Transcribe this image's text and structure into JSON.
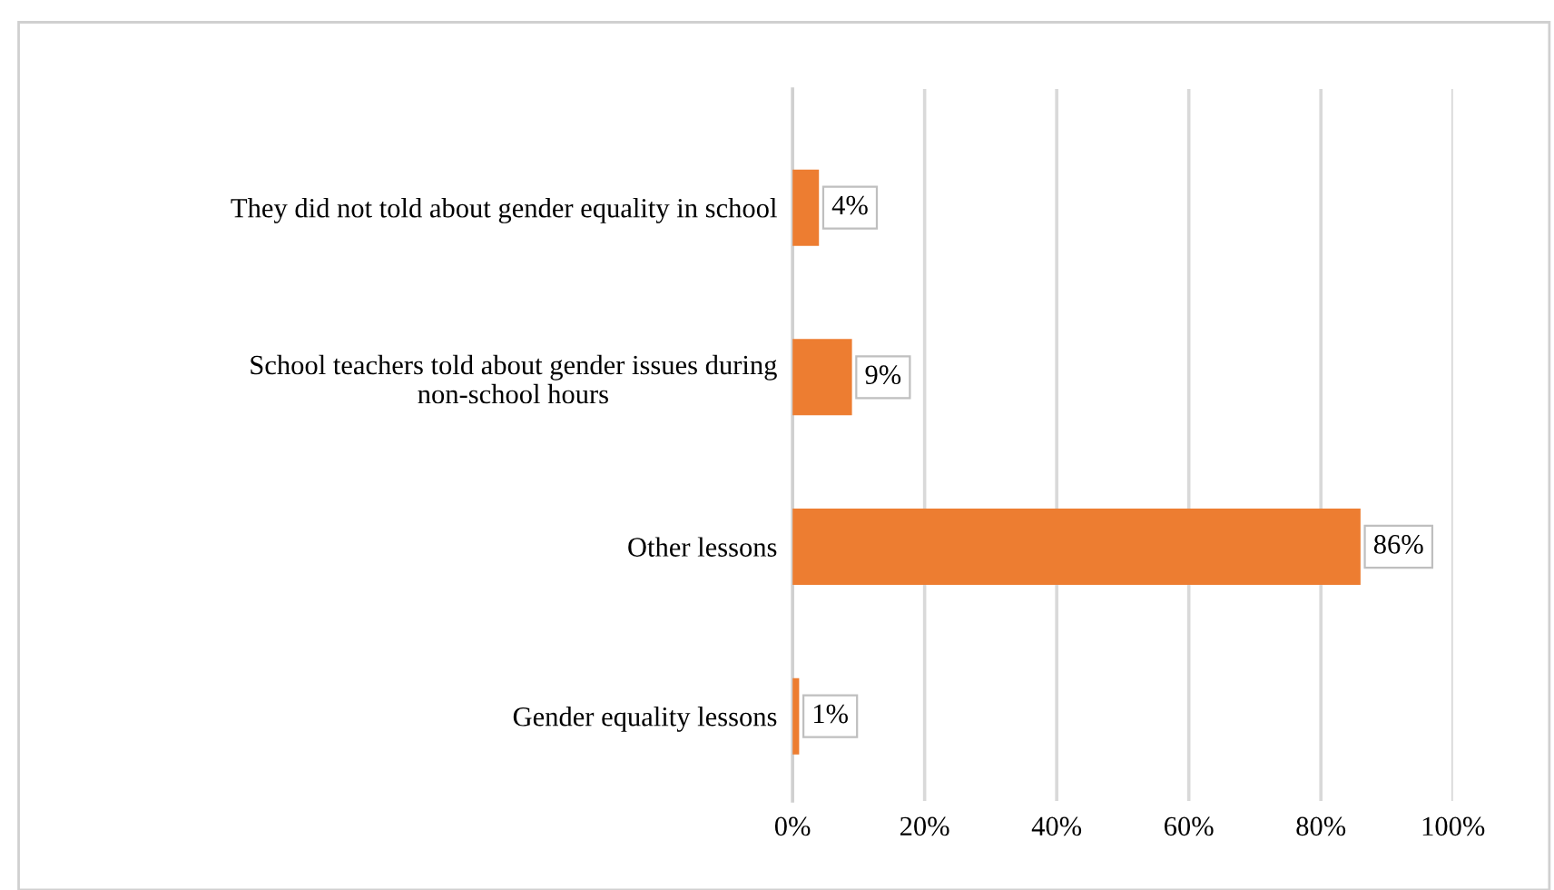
{
  "chart_data": {
    "type": "bar",
    "orientation": "horizontal",
    "categories": [
      "They did not told about gender equality in school",
      "School teachers told about gender issues during non-school hours",
      "Other lessons",
      "Gender equality lessons"
    ],
    "values": [
      4,
      9,
      86,
      1
    ],
    "value_labels": [
      "4%",
      "9%",
      "86%",
      "1%"
    ],
    "color": "#ed7d31",
    "xlim": [
      0,
      100
    ],
    "xticks": [
      {
        "value": 0,
        "label": "0%"
      },
      {
        "value": 20,
        "label": "20%"
      },
      {
        "value": 40,
        "label": "40%"
      },
      {
        "value": 60,
        "label": "60%"
      },
      {
        "value": 80,
        "label": "80%"
      },
      {
        "value": 100,
        "label": "100%"
      }
    ],
    "grid": "x"
  }
}
